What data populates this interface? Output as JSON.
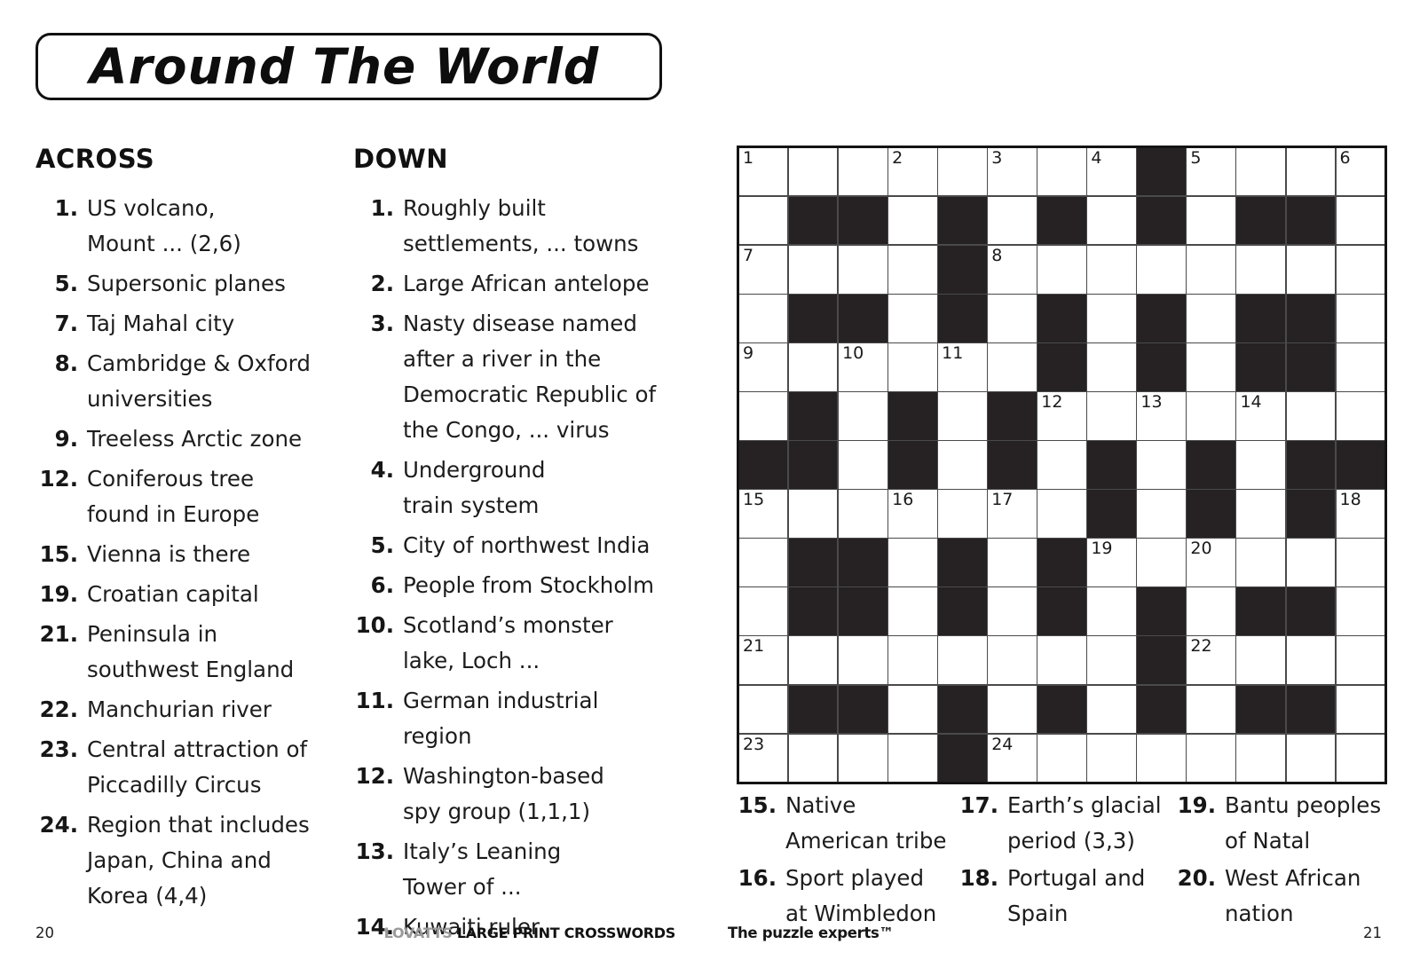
{
  "page": {
    "title": "Around The World",
    "left_page_number": "20",
    "right_page_number": "21",
    "footer_brand": "LOVATTS",
    "footer_series": "LARGE PRINT CROSSWORDS",
    "footer_tagline": "The puzzle experts™"
  },
  "across": {
    "heading": "ACROSS",
    "clues": [
      {
        "num": "1.",
        "lines": [
          "US volcano,",
          "Mount ... (2,6)"
        ]
      },
      {
        "num": "5.",
        "lines": [
          "Supersonic planes"
        ]
      },
      {
        "num": "7.",
        "lines": [
          "Taj Mahal city"
        ]
      },
      {
        "num": "8.",
        "lines": [
          "Cambridge & Oxford",
          "universities"
        ]
      },
      {
        "num": "9.",
        "lines": [
          "Treeless Arctic zone"
        ]
      },
      {
        "num": "12.",
        "lines": [
          "Coniferous tree",
          "found in Europe"
        ]
      },
      {
        "num": "15.",
        "lines": [
          "Vienna is there"
        ]
      },
      {
        "num": "19.",
        "lines": [
          "Croatian capital"
        ]
      },
      {
        "num": "21.",
        "lines": [
          "Peninsula in",
          "southwest England"
        ]
      },
      {
        "num": "22.",
        "lines": [
          "Manchurian river"
        ]
      },
      {
        "num": "23.",
        "lines": [
          "Central attraction of",
          "Piccadilly Circus"
        ]
      },
      {
        "num": "24.",
        "lines": [
          "Region that includes",
          "Japan, China and",
          "Korea (4,4)"
        ]
      }
    ]
  },
  "down": {
    "heading": "DOWN",
    "clues": [
      {
        "num": "1.",
        "lines": [
          "Roughly built",
          "settlements, ... towns"
        ]
      },
      {
        "num": "2.",
        "lines": [
          "Large African antelope"
        ]
      },
      {
        "num": "3.",
        "lines": [
          "Nasty disease named",
          "after a river in the",
          "Democratic Republic of",
          "the Congo, ... virus"
        ]
      },
      {
        "num": "4.",
        "lines": [
          "Underground",
          "train system"
        ]
      },
      {
        "num": "5.",
        "lines": [
          "City of northwest India"
        ]
      },
      {
        "num": "6.",
        "lines": [
          "People from Stockholm"
        ]
      },
      {
        "num": "10.",
        "lines": [
          "Scotland’s monster",
          "lake, Loch ..."
        ]
      },
      {
        "num": "11.",
        "lines": [
          "German industrial",
          "region"
        ]
      },
      {
        "num": "12.",
        "lines": [
          "Washington-based",
          "spy group (1,1,1)"
        ]
      },
      {
        "num": "13.",
        "lines": [
          "Italy’s Leaning",
          "Tower of ..."
        ]
      },
      {
        "num": "14.",
        "lines": [
          "Kuwaiti ruler"
        ]
      }
    ]
  },
  "bottom_clues": {
    "columns": [
      {
        "clues": [
          {
            "num": "15.",
            "lines": [
              "Native",
              "American tribe"
            ]
          },
          {
            "num": "16.",
            "lines": [
              "Sport played",
              "at Wimbledon"
            ]
          }
        ]
      },
      {
        "clues": [
          {
            "num": "17.",
            "lines": [
              "Earth’s glacial",
              "period (3,3)"
            ]
          },
          {
            "num": "18.",
            "lines": [
              "Portugal and",
              "Spain"
            ]
          }
        ]
      },
      {
        "clues": [
          {
            "num": "19.",
            "lines": [
              "Bantu peoples",
              "of Natal"
            ]
          },
          {
            "num": "20.",
            "lines": [
              "West African",
              "nation"
            ]
          }
        ]
      }
    ]
  },
  "grid": {
    "rows": 13,
    "cols": 13,
    "line_color": "#4a4a4a",
    "black_color": "#262223",
    "pattern": [
      "0000000010000",
      "0110101010110",
      "0000100000000",
      "0110101010110",
      "0000001010110",
      "0101010000000",
      "1101010101011",
      "0000000101010",
      "0110101000000",
      "0110101010110",
      "0000000010000",
      "0110101010110",
      "0000100000000"
    ],
    "numbers": [
      [
        0,
        0,
        "1"
      ],
      [
        0,
        3,
        "2"
      ],
      [
        0,
        5,
        "3"
      ],
      [
        0,
        7,
        "4"
      ],
      [
        0,
        9,
        "5"
      ],
      [
        0,
        12,
        "6"
      ],
      [
        2,
        0,
        "7"
      ],
      [
        2,
        5,
        "8"
      ],
      [
        4,
        0,
        "9"
      ],
      [
        4,
        2,
        "10"
      ],
      [
        4,
        4,
        "11"
      ],
      [
        5,
        6,
        "12"
      ],
      [
        5,
        8,
        "13"
      ],
      [
        5,
        10,
        "14"
      ],
      [
        7,
        0,
        "15"
      ],
      [
        7,
        3,
        "16"
      ],
      [
        7,
        5,
        "17"
      ],
      [
        7,
        12,
        "18"
      ],
      [
        8,
        7,
        "19"
      ],
      [
        8,
        9,
        "20"
      ],
      [
        10,
        0,
        "21"
      ],
      [
        10,
        9,
        "22"
      ],
      [
        12,
        0,
        "23"
      ],
      [
        12,
        5,
        "24"
      ]
    ]
  }
}
